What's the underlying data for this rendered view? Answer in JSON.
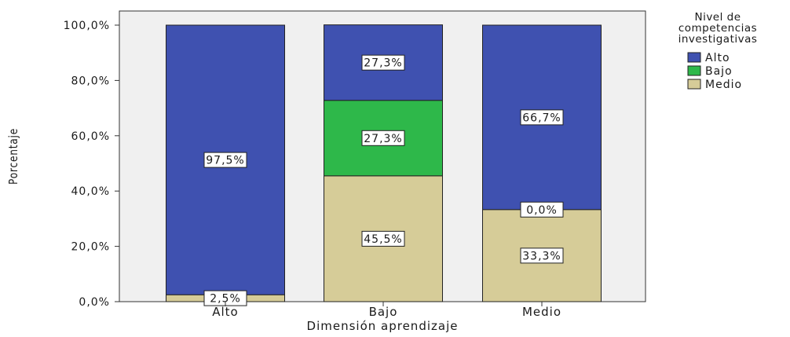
{
  "chart_data": {
    "type": "bar",
    "stacked": true,
    "categories": [
      "Alto",
      "Bajo",
      "Medio"
    ],
    "series": [
      {
        "name": "Medio",
        "values": [
          2.5,
          45.5,
          33.3
        ],
        "labels": [
          "2,5%",
          "45,5%",
          "33,3%"
        ],
        "color": "#d6cc98"
      },
      {
        "name": "Bajo",
        "values": [
          0.0,
          27.3,
          0.0
        ],
        "labels": [
          null,
          "27,3%",
          "0,0%"
        ],
        "color": "#2eb84a"
      },
      {
        "name": "Alto",
        "values": [
          97.5,
          27.3,
          66.7
        ],
        "labels": [
          "97,5%",
          "27,3%",
          "66,7%"
        ],
        "color": "#3f51b0"
      }
    ],
    "xlabel": "Dimensión aprendizaje",
    "ylabel": "Porcentaje",
    "ylim": [
      0,
      100
    ],
    "yticks": [
      0,
      20,
      40,
      60,
      80,
      100
    ],
    "ytick_labels": [
      "0,0%",
      "20,0%",
      "40,0%",
      "60,0%",
      "80,0%",
      "100,0%"
    ],
    "legend": {
      "title_lines": [
        "Nivel de",
        "competencias",
        "investigativas"
      ],
      "entries": [
        {
          "label": "Alto",
          "color": "#3f51b0"
        },
        {
          "label": "Bajo",
          "color": "#2eb84a"
        },
        {
          "label": "Medio",
          "color": "#d6cc98"
        }
      ],
      "placement": "right"
    },
    "plot_background": "#f0f0f0",
    "grid": false
  }
}
